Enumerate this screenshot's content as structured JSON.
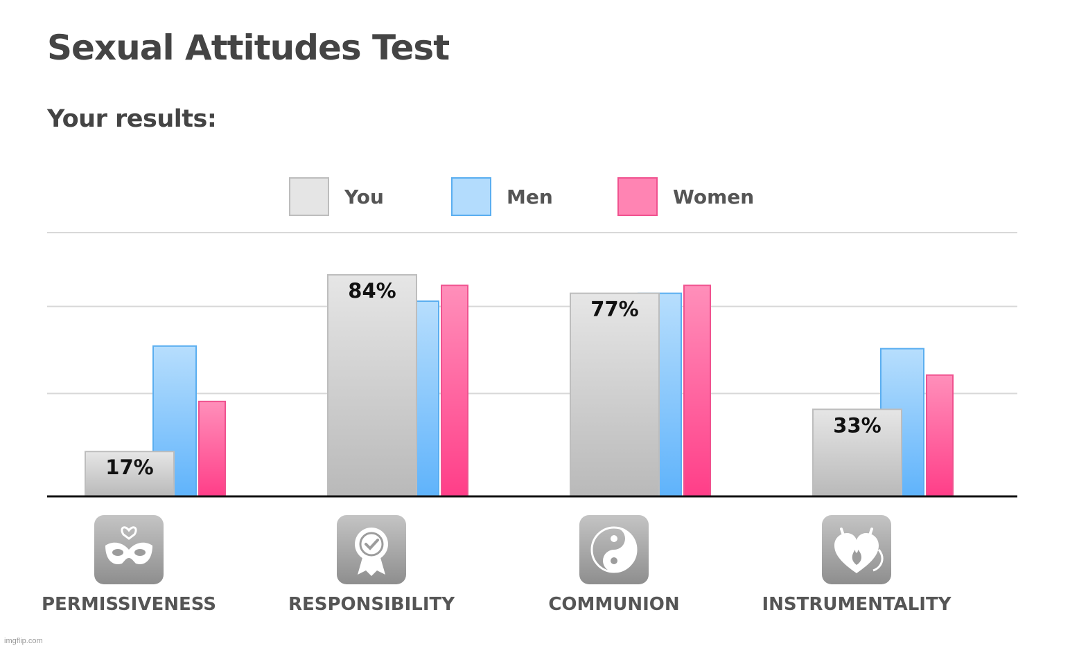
{
  "page": {
    "title": "Sexual Attitudes Test",
    "results_heading": "Your results:",
    "watermark": "imgflip.com"
  },
  "chart_data": {
    "type": "bar",
    "categories": [
      "PERMISSIVENESS",
      "RESPONSIBILITY",
      "COMMUNION",
      "INSTRUMENTALITY"
    ],
    "category_icons": [
      "mask-icon",
      "award-ribbon-icon",
      "yin-yang-icon",
      "heart-flame-icon"
    ],
    "series": [
      {
        "name": "You",
        "values": [
          17,
          84,
          77,
          33
        ],
        "color": "#d6d6d6",
        "stroke": "#bdbdbd",
        "data_labels": [
          "17%",
          "84%",
          "77%",
          "33%"
        ]
      },
      {
        "name": "Men",
        "values": [
          57,
          74,
          77,
          56
        ],
        "color": "#7ec4fb",
        "stroke": "#5aaef0"
      },
      {
        "name": "Women",
        "values": [
          36,
          80,
          80,
          46
        ],
        "color": "#ff6fa5",
        "stroke": "#f0528f"
      }
    ],
    "ylim": [
      0,
      100
    ],
    "grid": true,
    "legend": "top-center",
    "xlabel": "",
    "ylabel": ""
  }
}
